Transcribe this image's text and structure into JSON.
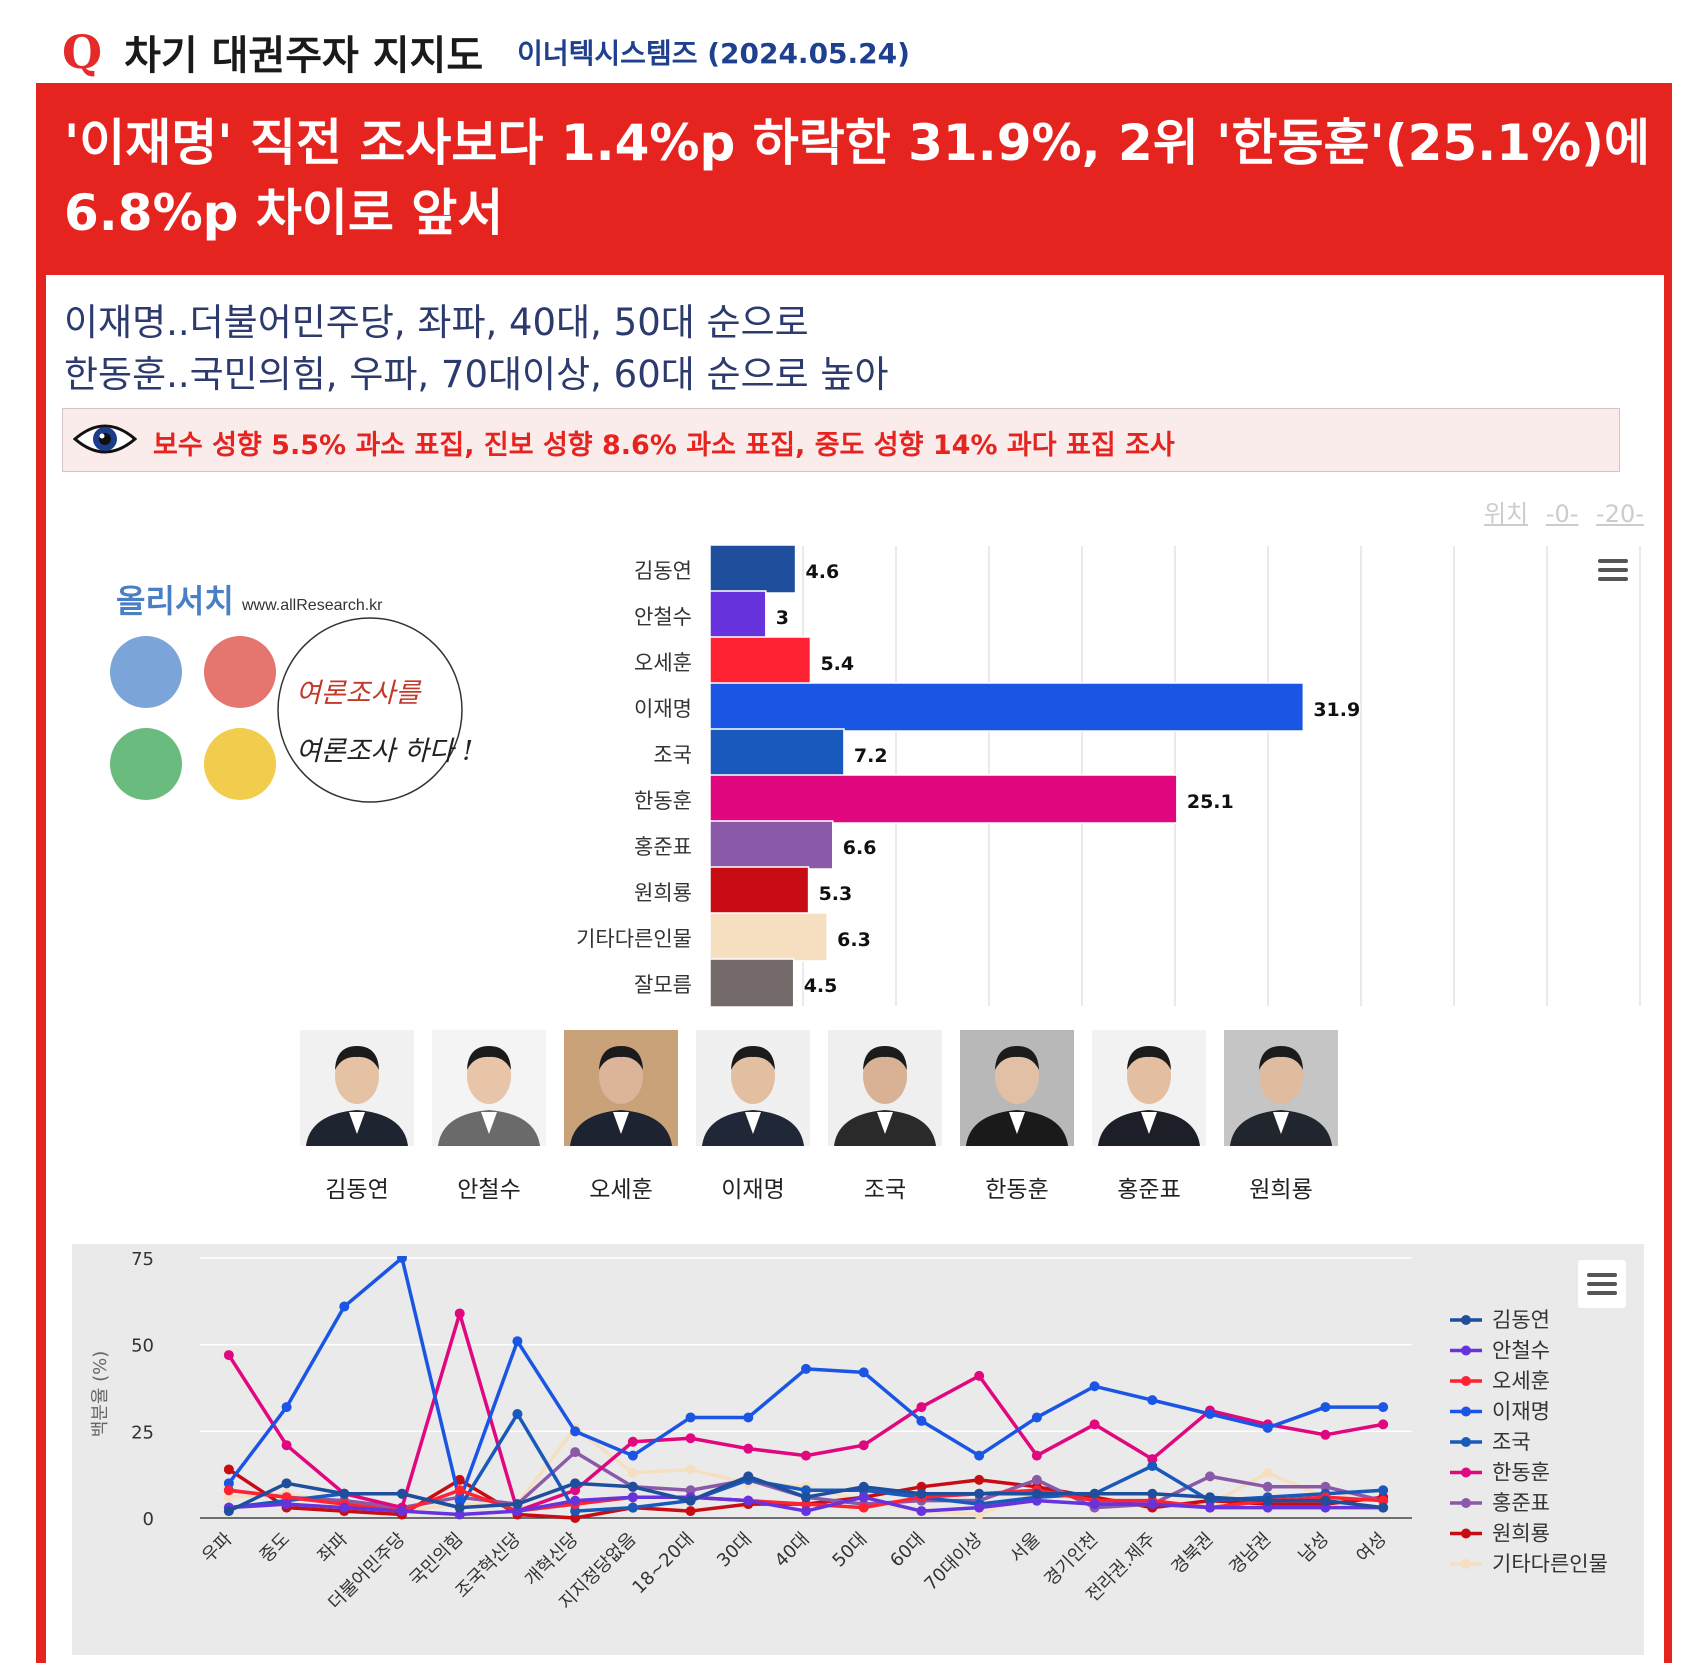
{
  "header": {
    "q_mark": "Q",
    "title": "차기 대권주자 지지도",
    "source": "이너텍시스템즈 (2024.05.24)"
  },
  "headline": {
    "line1": "'이재명' 직전 조사보다 1.4%p 하락한 31.9%, 2위 '한동훈'(25.1%)에",
    "line2": "6.8%p 차이로 앞서"
  },
  "subtitle": {
    "line1": "이재명..더불어민주당, 좌파, 40대, 50대 순으로",
    "line2": "한동훈..국민의힘, 우파, 70대이상, 60대 순으로 높아"
  },
  "notice": {
    "text": "보수 성향 5.5% 과소 표집, 진보 성향 8.6% 과소 표집, 중도 성향 14% 과다 표집 조사"
  },
  "position_nav": {
    "label": "위치",
    "links": [
      "-0-",
      "-20-"
    ]
  },
  "logo": {
    "brand": "올리서치",
    "url": "www.allResearch.kr",
    "slogan1": "여론조사를",
    "slogan2": "여론조사 하다 !"
  },
  "photos": {
    "names": [
      "김동연",
      "안철수",
      "오세훈",
      "이재명",
      "조국",
      "한동훈",
      "홍준표",
      "원희룡"
    ]
  },
  "chart_data": [
    {
      "type": "bar",
      "orientation": "horizontal",
      "categories": [
        "김동연",
        "안철수",
        "오세훈",
        "이재명",
        "조국",
        "한동훈",
        "홍준표",
        "원희룡",
        "기타다른인물",
        "잘모름"
      ],
      "values": [
        4.6,
        3,
        5.4,
        31.9,
        7.2,
        25.1,
        6.6,
        5.3,
        6.3,
        4.5
      ],
      "colors": [
        "#1e4e9c",
        "#6633dd",
        "#ff2233",
        "#1a55e3",
        "#1859bb",
        "#e1077e",
        "#8a5aa8",
        "#c70c14",
        "#f6dfc0",
        "#746a6a"
      ],
      "xlim": [
        0,
        50
      ],
      "grid": true
    },
    {
      "type": "line",
      "ylabel": "백분율 (%)",
      "ylim": [
        0,
        75
      ],
      "yticks": [
        0,
        25,
        50,
        75
      ],
      "categories": [
        "우파",
        "중도",
        "좌파",
        "더불어민주당",
        "국민의힘",
        "조국혁신당",
        "개혁신당",
        "지지정당없음",
        "18~20대",
        "30대",
        "40대",
        "50대",
        "60대",
        "70대이상",
        "서울",
        "경기인천",
        "전라권.제주",
        "경북권",
        "경남권",
        "남성",
        "여성"
      ],
      "legend_position": "right",
      "series": [
        {
          "name": "김동연",
          "color": "#1e4e9c",
          "values": [
            2,
            10,
            7,
            7,
            3,
            4,
            10,
            9,
            5,
            12,
            6,
            9,
            7,
            7,
            7,
            7,
            7,
            6,
            5,
            5,
            3
          ]
        },
        {
          "name": "안철수",
          "color": "#6633dd",
          "values": [
            3,
            4,
            3,
            2,
            1,
            2,
            5,
            6,
            6,
            5,
            2,
            6,
            2,
            3,
            5,
            4,
            4,
            3,
            3,
            3,
            3
          ]
        },
        {
          "name": "오세훈",
          "color": "#ff2233",
          "values": [
            8,
            6,
            4,
            2,
            8,
            2,
            4,
            6,
            6,
            5,
            4,
            3,
            6,
            7,
            8,
            5,
            5,
            3,
            5,
            6,
            5
          ]
        },
        {
          "name": "이재명",
          "color": "#1a55e3",
          "values": [
            10,
            32,
            61,
            75,
            5,
            51,
            25,
            18,
            29,
            29,
            43,
            42,
            28,
            18,
            29,
            38,
            34,
            30,
            26,
            32,
            32
          ]
        },
        {
          "name": "조국",
          "color": "#1859bb",
          "values": [
            3,
            5,
            7,
            7,
            3,
            30,
            2,
            3,
            5,
            11,
            8,
            8,
            6,
            4,
            6,
            7,
            15,
            5,
            6,
            7,
            8
          ]
        },
        {
          "name": "한동훈",
          "color": "#e1077e",
          "values": [
            47,
            21,
            7,
            3,
            59,
            2,
            8,
            22,
            23,
            20,
            18,
            21,
            32,
            41,
            18,
            27,
            17,
            31,
            27,
            24,
            27
          ]
        },
        {
          "name": "홍준표",
          "color": "#8a5aa8",
          "values": [
            8,
            6,
            5,
            3,
            6,
            4,
            19,
            9,
            8,
            11,
            6,
            4,
            5,
            5,
            11,
            3,
            4,
            12,
            9,
            9,
            5
          ]
        },
        {
          "name": "원희룡",
          "color": "#c70c14",
          "values": [
            14,
            3,
            2,
            1,
            11,
            1,
            0,
            3,
            2,
            4,
            4,
            6,
            9,
            11,
            9,
            6,
            3,
            5,
            4,
            4,
            6
          ]
        },
        {
          "name": "기타다른인물",
          "color": "#f6dfc0",
          "values": [
            6,
            7,
            4,
            2,
            4,
            4,
            26,
            13,
            14,
            10,
            9,
            5,
            2,
            1,
            7,
            6,
            4,
            4,
            13,
            6,
            8
          ]
        }
      ]
    }
  ]
}
